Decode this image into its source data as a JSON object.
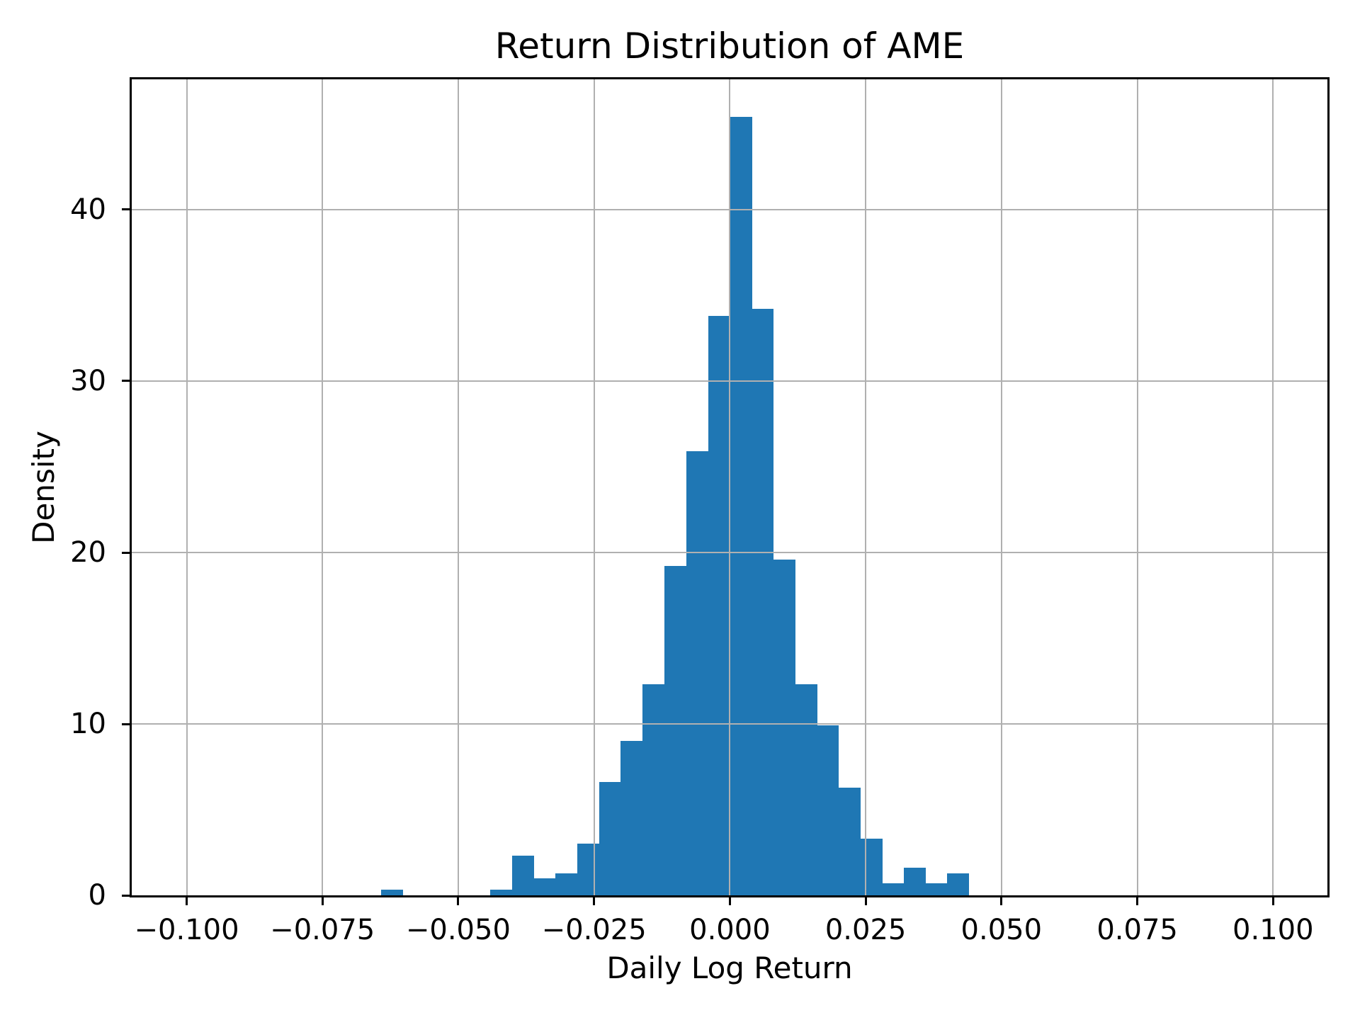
{
  "chart_data": {
    "type": "bar",
    "subtype": "histogram",
    "title": "Return Distribution of AME",
    "xlabel": "Daily Log Return",
    "ylabel": "Density",
    "bar_color": "#1f77b4",
    "grid_color": "#b0b0b0",
    "grid": "on, drawn above bars",
    "legend": "none",
    "xlim": [
      -0.1101,
      0.11
    ],
    "ylim": [
      0,
      47.6
    ],
    "x_ticks": [
      {
        "value": -0.1,
        "label": "−0.100"
      },
      {
        "value": -0.075,
        "label": "−0.075"
      },
      {
        "value": -0.05,
        "label": "−0.050"
      },
      {
        "value": -0.025,
        "label": "−0.025"
      },
      {
        "value": 0.0,
        "label": "0.000"
      },
      {
        "value": 0.025,
        "label": "0.025"
      },
      {
        "value": 0.05,
        "label": "0.050"
      },
      {
        "value": 0.075,
        "label": "0.075"
      },
      {
        "value": 0.1,
        "label": "0.100"
      }
    ],
    "y_ticks": [
      {
        "value": 0,
        "label": "0"
      },
      {
        "value": 10,
        "label": "10"
      },
      {
        "value": 20,
        "label": "20"
      },
      {
        "value": 30,
        "label": "30"
      },
      {
        "value": 40,
        "label": "40"
      }
    ],
    "bin_edges": [
      -0.0642,
      -0.0602,
      -0.0562,
      -0.0521,
      -0.0481,
      -0.0441,
      -0.0401,
      -0.0361,
      -0.0321,
      -0.0281,
      -0.0241,
      -0.0201,
      -0.0161,
      -0.0121,
      -0.008,
      -0.004,
      0.0,
      0.004,
      0.008,
      0.012,
      0.016,
      0.02,
      0.024,
      0.028,
      0.032,
      0.036,
      0.04,
      0.044
    ],
    "densities": [
      0.35,
      0,
      0,
      0,
      0,
      0.35,
      2.3,
      1.0,
      1.3,
      3.0,
      6.6,
      9.0,
      12.3,
      19.2,
      25.9,
      33.8,
      45.4,
      34.2,
      19.6,
      12.3,
      9.9,
      6.3,
      3.3,
      0.7,
      1.6,
      0.7,
      1.3
    ]
  }
}
